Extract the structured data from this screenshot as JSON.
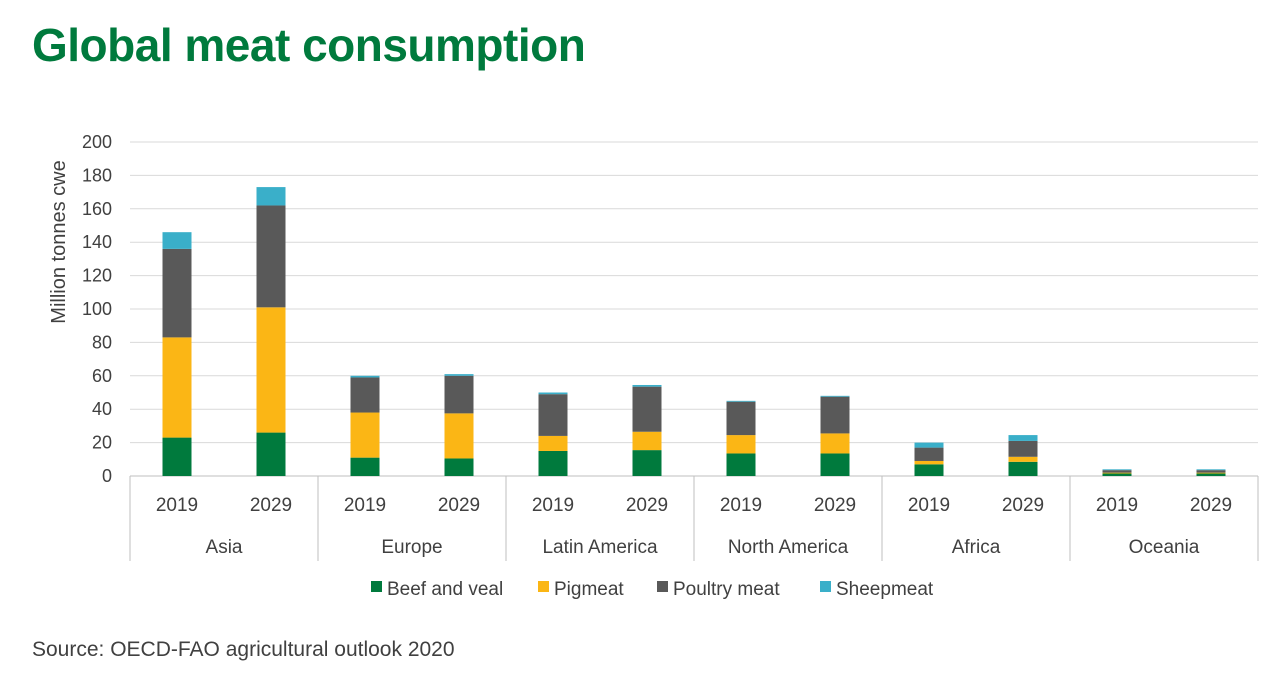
{
  "title": "Global meat consumption",
  "source": "Source: OECD-FAO agricultural outlook 2020",
  "colors": {
    "title": "#007a3d",
    "grid": "#d9d9d9",
    "axis": "#bfbfbf",
    "text": "#404040"
  },
  "chart_data": {
    "type": "bar",
    "stacked": true,
    "title": "",
    "ylabel": "Million tonnes cwe",
    "xlabel": "",
    "ylim": [
      0,
      200
    ],
    "yticks": [
      0,
      20,
      40,
      60,
      80,
      100,
      120,
      140,
      160,
      180,
      200
    ],
    "grid": true,
    "legend_position": "bottom",
    "groups": [
      "Asia",
      "Europe",
      "Latin America",
      "North America",
      "Africa",
      "Oceania"
    ],
    "years": [
      "2019",
      "2029"
    ],
    "categories": [
      "Asia 2019",
      "Asia 2029",
      "Europe 2019",
      "Europe 2029",
      "Latin America 2019",
      "Latin America 2029",
      "North America 2019",
      "North America 2029",
      "Africa 2019",
      "Africa 2029",
      "Oceania 2019",
      "Oceania 2029"
    ],
    "series": [
      {
        "name": "Beef and veal",
        "color": "#007a3d",
        "values": [
          23,
          26,
          11,
          10.5,
          15,
          15.5,
          13.5,
          13.5,
          7,
          8.5,
          1.5,
          1.5
        ]
      },
      {
        "name": "Pigmeat",
        "color": "#fbb615",
        "values": [
          60,
          75,
          27,
          27,
          9,
          11,
          11,
          12,
          2,
          3,
          0.5,
          0.5
        ]
      },
      {
        "name": "Poultry meat",
        "color": "#595959",
        "values": [
          53,
          61,
          21,
          22.5,
          25,
          27,
          20,
          22,
          8,
          9.5,
          1.5,
          1.5
        ]
      },
      {
        "name": "Sheepmeat",
        "color": "#3aafc9",
        "values": [
          10,
          11,
          1,
          1,
          1,
          1,
          0.5,
          0.5,
          3,
          3.5,
          0.5,
          0.5
        ]
      }
    ]
  }
}
